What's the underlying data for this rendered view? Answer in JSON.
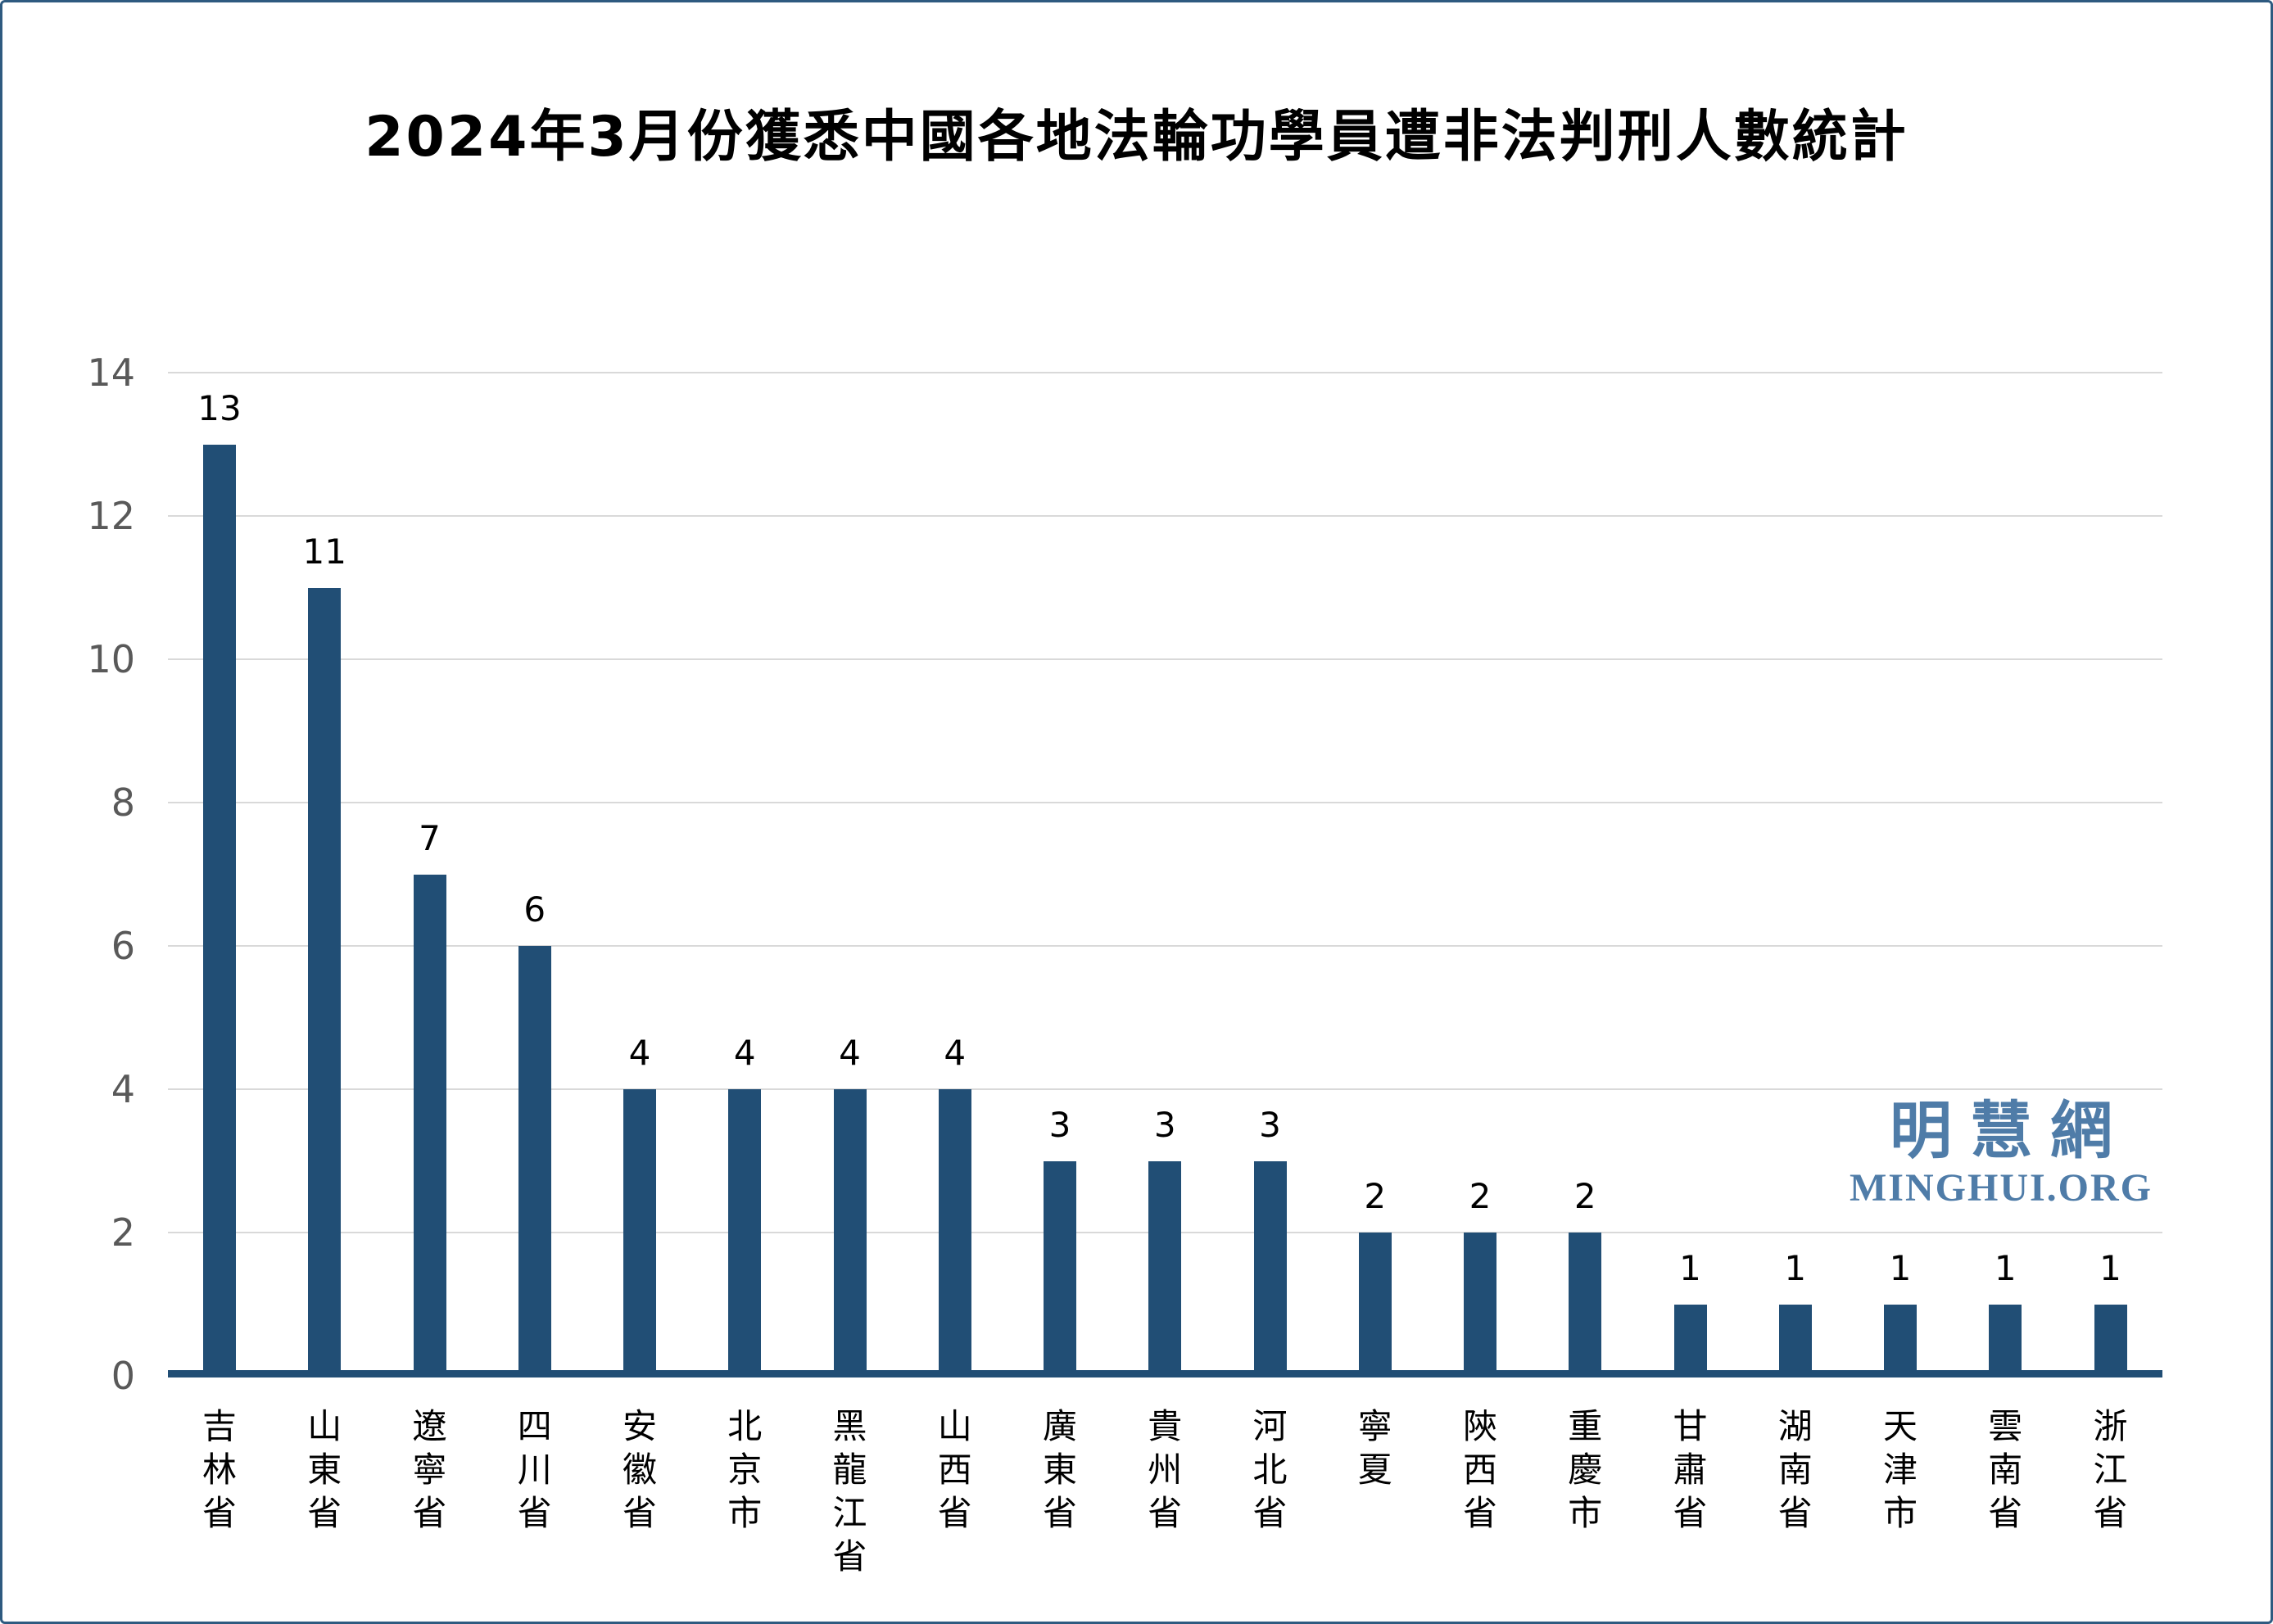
{
  "title": "2024年3月份獲悉中國各地法輪功學員遭非法判刑人數統計",
  "watermark": {
    "line1": "明慧網",
    "line2": "MINGHUI.ORG"
  },
  "colors": {
    "bar": "#214e75",
    "axis_line": "#214e75",
    "gridline": "#d9d9d9",
    "tick_label": "#595959",
    "value_label": "#000000",
    "watermark": "#4f7ca8",
    "border": "#2e5a80"
  },
  "chart_data": {
    "type": "bar",
    "title": "2024年3月份獲悉中國各地法輪功學員遭非法判刑人數統計",
    "categories": [
      "吉林省",
      "山東省",
      "遼寧省",
      "四川省",
      "安徽省",
      "北京市",
      "黑龍江省",
      "山西省",
      "廣東省",
      "貴州省",
      "河北省",
      "寧夏",
      "陝西省",
      "重慶市",
      "甘肅省",
      "湖南省",
      "天津市",
      "雲南省",
      "浙江省"
    ],
    "values": [
      13,
      11,
      7,
      6,
      4,
      4,
      4,
      4,
      3,
      3,
      3,
      2,
      2,
      2,
      1,
      1,
      1,
      1,
      1
    ],
    "xlabel": "",
    "ylabel": "",
    "ylim": [
      0,
      14
    ],
    "yticks": [
      0,
      2,
      4,
      6,
      8,
      10,
      12,
      14
    ],
    "grid": true,
    "legend": false,
    "value_labels": true
  }
}
